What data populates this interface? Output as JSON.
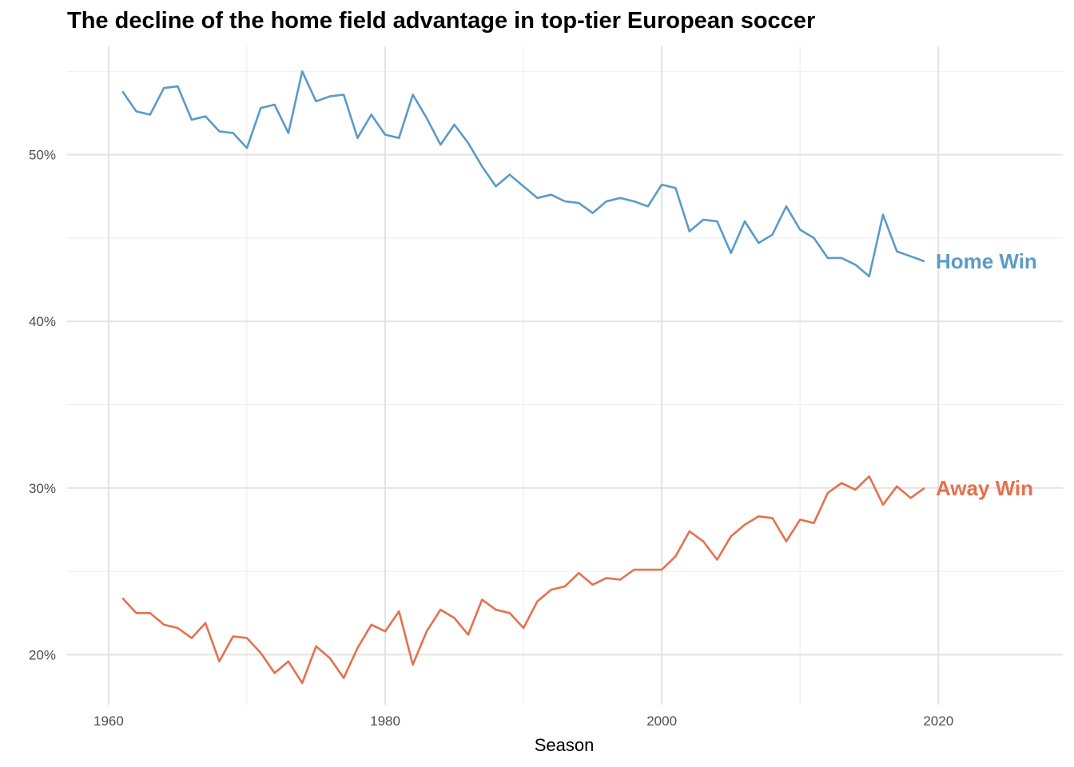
{
  "chart_data": {
    "type": "line",
    "title": "The decline of the home field advantage in top-tier European soccer",
    "xlabel": "Season",
    "ylabel": "",
    "xlim": [
      1957,
      2029
    ],
    "ylim": [
      0.17,
      0.565
    ],
    "x_ticks": [
      1960,
      1980,
      2000,
      2020
    ],
    "x_tick_labels": [
      "1960",
      "1980",
      "2000",
      "2020"
    ],
    "y_ticks": [
      0.2,
      0.3,
      0.4,
      0.5
    ],
    "y_tick_labels": [
      "20%",
      "30%",
      "40%",
      "50%"
    ],
    "grid": true,
    "legend": "direct labels at line ends",
    "x": [
      1961,
      1962,
      1963,
      1964,
      1965,
      1966,
      1967,
      1968,
      1969,
      1970,
      1971,
      1972,
      1973,
      1974,
      1975,
      1976,
      1977,
      1978,
      1979,
      1980,
      1981,
      1982,
      1983,
      1984,
      1985,
      1986,
      1987,
      1988,
      1989,
      1990,
      1991,
      1992,
      1993,
      1994,
      1995,
      1996,
      1997,
      1998,
      1999,
      2000,
      2001,
      2002,
      2003,
      2004,
      2005,
      2006,
      2007,
      2008,
      2009,
      2010,
      2011,
      2012,
      2013,
      2014,
      2015,
      2016,
      2017,
      2018,
      2019
    ],
    "series": [
      {
        "name": "Home Win",
        "color": "#5b9bc6",
        "values": [
          0.538,
          0.526,
          0.524,
          0.54,
          0.541,
          0.521,
          0.523,
          0.514,
          0.513,
          0.504,
          0.528,
          0.53,
          0.513,
          0.55,
          0.532,
          0.535,
          0.536,
          0.51,
          0.524,
          0.512,
          0.51,
          0.536,
          0.522,
          0.506,
          0.518,
          0.507,
          0.493,
          0.481,
          0.488,
          0.481,
          0.474,
          0.476,
          0.472,
          0.471,
          0.465,
          0.472,
          0.474,
          0.472,
          0.469,
          0.482,
          0.48,
          0.454,
          0.461,
          0.46,
          0.441,
          0.46,
          0.447,
          0.452,
          0.469,
          0.455,
          0.45,
          0.438,
          0.438,
          0.434,
          0.427,
          0.464,
          0.442,
          0.439,
          0.436
        ]
      },
      {
        "name": "Away Win",
        "color": "#e4714d",
        "values": [
          0.234,
          0.225,
          0.225,
          0.218,
          0.216,
          0.21,
          0.219,
          0.196,
          0.211,
          0.21,
          0.201,
          0.189,
          0.196,
          0.183,
          0.205,
          0.198,
          0.186,
          0.204,
          0.218,
          0.214,
          0.226,
          0.194,
          0.214,
          0.227,
          0.222,
          0.212,
          0.233,
          0.227,
          0.225,
          0.216,
          0.232,
          0.239,
          0.241,
          0.249,
          0.242,
          0.246,
          0.245,
          0.251,
          0.251,
          0.251,
          0.259,
          0.274,
          0.268,
          0.257,
          0.271,
          0.278,
          0.283,
          0.282,
          0.268,
          0.281,
          0.279,
          0.297,
          0.303,
          0.299,
          0.307,
          0.29,
          0.301,
          0.294,
          0.3
        ]
      }
    ]
  }
}
